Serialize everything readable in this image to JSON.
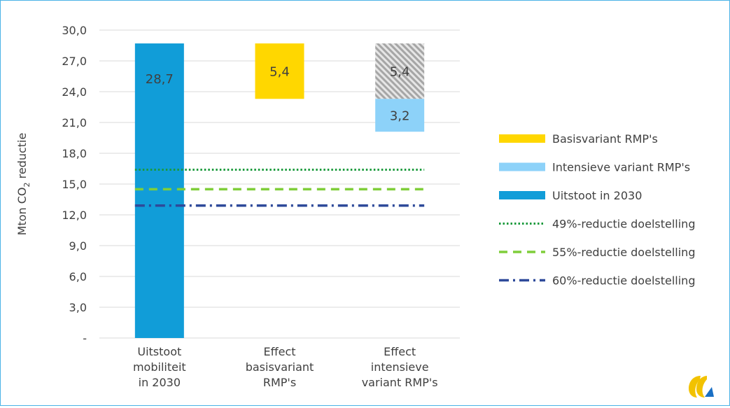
{
  "chart_data": {
    "type": "bar",
    "title": "",
    "ylabel": "Mton CO2 reductie",
    "ylabel_main": "Mton CO",
    "ylabel_sub": "2",
    "ylabel_tail": " reductie",
    "ylim": [
      0,
      30
    ],
    "yticks": [
      {
        "value": 0,
        "label": "-"
      },
      {
        "value": 3,
        "label": "3,0"
      },
      {
        "value": 6,
        "label": "6,0"
      },
      {
        "value": 9,
        "label": "9,0"
      },
      {
        "value": 12,
        "label": "12,0"
      },
      {
        "value": 15,
        "label": "15,0"
      },
      {
        "value": 18,
        "label": "18,0"
      },
      {
        "value": 21,
        "label": "21,0"
      },
      {
        "value": 24,
        "label": "24,0"
      },
      {
        "value": 27,
        "label": "27,0"
      },
      {
        "value": 30,
        "label": "30,0"
      }
    ],
    "categories": [
      [
        "Uitstoot",
        "mobiliteit",
        "in 2030"
      ],
      [
        "Effect",
        "basisvariant",
        "RMP's"
      ],
      [
        "Effect",
        "intensieve",
        "variant RMP's"
      ]
    ],
    "bars": [
      {
        "category": 0,
        "series": "Uitstoot in 2030",
        "bottom": 0,
        "top": 28.7,
        "label": "28,7",
        "fill": "#119dd8",
        "label_pos": "inside-top"
      },
      {
        "category": 1,
        "series": "Basisvariant RMP's",
        "bottom": 23.3,
        "top": 28.7,
        "label": "5,4",
        "fill": "#ffd700",
        "label_pos": "center"
      },
      {
        "category": 2,
        "series": "",
        "bottom": 23.3,
        "top": 28.7,
        "label": "5,4",
        "fill": "hatch",
        "label_pos": "center"
      },
      {
        "category": 2,
        "series": "Intensieve variant RMP's",
        "bottom": 20.1,
        "top": 23.3,
        "label": "3,2",
        "fill": "#8dd2f9",
        "label_pos": "center"
      }
    ],
    "reference_lines": [
      {
        "name": "49%-reductie doelstelling",
        "value": 16.4,
        "color": "#1a9a3c",
        "style": "dotted"
      },
      {
        "name": "55%-reductie doelstelling",
        "value": 14.5,
        "color": "#7fce3a",
        "style": "dashed"
      },
      {
        "name": "60%-reductie doelstelling",
        "value": 12.9,
        "color": "#2e4a9a",
        "style": "dashdot"
      }
    ],
    "legend": {
      "position": "right",
      "items": [
        {
          "label": "Basisvariant RMP's",
          "kind": "patch",
          "color": "#ffd700"
        },
        {
          "label": "Intensieve variant RMP's",
          "kind": "patch",
          "color": "#8dd2f9"
        },
        {
          "label": "Uitstoot in 2030",
          "kind": "patch",
          "color": "#119dd8"
        },
        {
          "label": "49%-reductie doelstelling",
          "kind": "line",
          "color": "#1a9a3c",
          "style": "dotted"
        },
        {
          "label": "55%-reductie doelstelling",
          "kind": "line",
          "color": "#7fce3a",
          "style": "dashed"
        },
        {
          "label": "60%-reductie doelstelling",
          "kind": "line",
          "color": "#2e4a9a",
          "style": "dashdot"
        }
      ]
    },
    "grid": true
  },
  "logo": {
    "icon": "ce-delft-logo-icon",
    "color_main": "#f2c200",
    "color_accent": "#1a6fc4"
  }
}
